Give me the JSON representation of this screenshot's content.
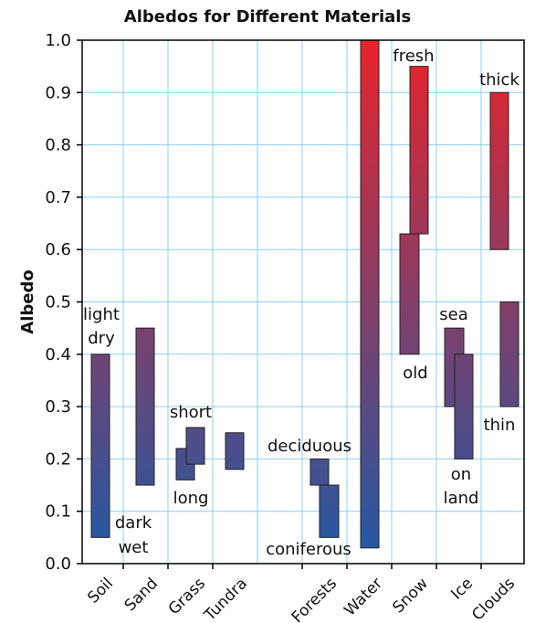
{
  "chart_data": {
    "type": "bar",
    "title": "Albedos for Different Materials",
    "xlabel": "",
    "ylabel": "Albedo",
    "ylim": [
      0.0,
      1.0
    ],
    "yticks": [
      "0.0",
      "0.1",
      "0.2",
      "0.3",
      "0.4",
      "0.5",
      "0.6",
      "0.7",
      "0.8",
      "0.9",
      "1.0"
    ],
    "grid": true,
    "categories": [
      "Soil",
      "Sand",
      "Grass",
      "Tundra",
      "Forests",
      "Water",
      "Snow",
      "Ice",
      "Clouds"
    ],
    "ranges": [
      {
        "category": "Soil",
        "low": 0.05,
        "high": 0.4,
        "label": ""
      },
      {
        "category": "Sand",
        "low": 0.15,
        "high": 0.45,
        "label": ""
      },
      {
        "category": "Grass",
        "low": 0.16,
        "high": 0.22,
        "label": "long"
      },
      {
        "category": "Grass",
        "low": 0.19,
        "high": 0.26,
        "label": "short"
      },
      {
        "category": "Tundra",
        "low": 0.18,
        "high": 0.25,
        "label": ""
      },
      {
        "category": "Forests",
        "low": 0.15,
        "high": 0.2,
        "label": "deciduous"
      },
      {
        "category": "Forests",
        "low": 0.05,
        "high": 0.15,
        "label": "coniferous"
      },
      {
        "category": "Water",
        "low": 0.03,
        "high": 1.0,
        "label": ""
      },
      {
        "category": "Snow",
        "low": 0.4,
        "high": 0.63,
        "label": "old"
      },
      {
        "category": "Snow",
        "low": 0.63,
        "high": 0.95,
        "label": "fresh"
      },
      {
        "category": "Ice",
        "low": 0.3,
        "high": 0.45,
        "label": "sea"
      },
      {
        "category": "Ice",
        "low": 0.2,
        "high": 0.4,
        "label": "on land"
      },
      {
        "category": "Clouds",
        "low": 0.6,
        "high": 0.9,
        "label": "thick"
      },
      {
        "category": "Clouds",
        "low": 0.3,
        "high": 0.5,
        "label": "thin"
      }
    ],
    "annotations": [
      {
        "text": "light",
        "category": "Soil"
      },
      {
        "text": "dry",
        "category": "Soil"
      },
      {
        "text": "dark",
        "category": "Soil"
      },
      {
        "text": "wet",
        "category": "Soil"
      },
      {
        "text": "short",
        "category": "Grass"
      },
      {
        "text": "long",
        "category": "Grass"
      },
      {
        "text": "deciduous",
        "category": "Forests"
      },
      {
        "text": "coniferous",
        "category": "Forests"
      },
      {
        "text": "fresh",
        "category": "Snow"
      },
      {
        "text": "old",
        "category": "Snow"
      },
      {
        "text": "sea",
        "category": "Ice"
      },
      {
        "text": "on",
        "category": "Ice"
      },
      {
        "text": "land",
        "category": "Ice"
      },
      {
        "text": "thick",
        "category": "Clouds"
      },
      {
        "text": "thin",
        "category": "Clouds"
      }
    ],
    "colors": {
      "low": "#1f5aa6",
      "high": "#e8232a",
      "grid": "#8ccff0",
      "axis": "#000000"
    }
  }
}
